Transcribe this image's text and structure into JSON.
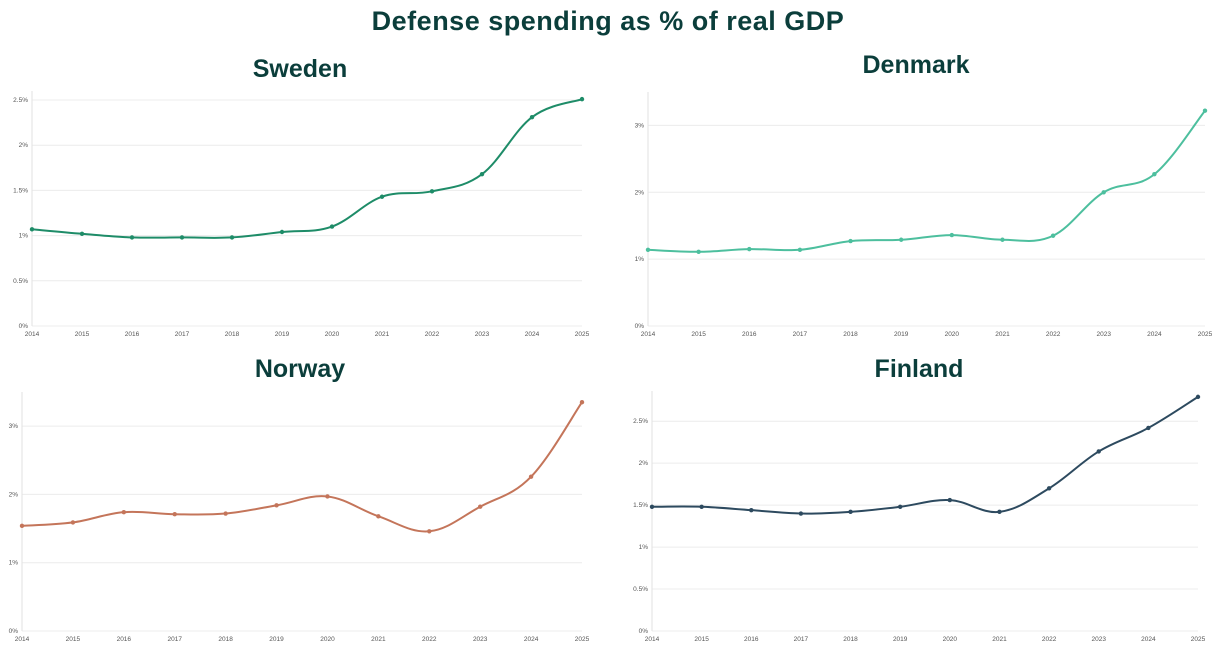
{
  "title": "Defense spending as % of real GDP",
  "chart_data": [
    {
      "type": "line",
      "title": "Sweden",
      "color": "#1e8c68",
      "x": [
        2014,
        2015,
        2016,
        2017,
        2018,
        2019,
        2020,
        2021,
        2022,
        2023,
        2024,
        2025
      ],
      "xtick_labels": [
        "2014",
        "2015",
        "2016",
        "2017",
        "2018",
        "2019",
        "2020",
        "2021",
        "2022",
        "2023",
        "2024",
        "2025"
      ],
      "values": [
        1.07,
        1.02,
        0.98,
        0.98,
        0.98,
        1.04,
        1.1,
        1.43,
        1.49,
        1.68,
        2.31,
        2.51
      ],
      "yticks": [
        0,
        0.5,
        1,
        1.5,
        2,
        2.5
      ],
      "ytick_labels": [
        "0%",
        "0.5%",
        "1%",
        "1.5%",
        "2%",
        "2.5%"
      ],
      "ylim": [
        0,
        2.6
      ],
      "grid": true,
      "xlabel": "",
      "ylabel": ""
    },
    {
      "type": "line",
      "title": "Denmark",
      "color": "#4dbf9e",
      "x": [
        2014,
        2015,
        2016,
        2017,
        2018,
        2019,
        2020,
        2021,
        2022,
        2023,
        2024,
        2025
      ],
      "xtick_labels": [
        "2014",
        "2015",
        "2016",
        "2017",
        "2018",
        "2019",
        "2020",
        "2021",
        "2022",
        "2023",
        "2024",
        "2025"
      ],
      "values": [
        1.14,
        1.11,
        1.15,
        1.14,
        1.27,
        1.29,
        1.36,
        1.29,
        1.35,
        2.0,
        2.27,
        3.22
      ],
      "yticks": [
        0,
        1,
        2,
        3
      ],
      "ytick_labels": [
        "0%",
        "1%",
        "2%",
        "3%"
      ],
      "ylim": [
        0,
        3.5
      ],
      "grid": true,
      "xlabel": "",
      "ylabel": ""
    },
    {
      "type": "line",
      "title": "Norway",
      "color": "#c4755a",
      "x": [
        2014,
        2015,
        2016,
        2017,
        2018,
        2019,
        2020,
        2021,
        2022,
        2023,
        2024,
        2025
      ],
      "xtick_labels": [
        "2014",
        "2015",
        "2016",
        "2017",
        "2018",
        "2019",
        "2020",
        "2021",
        "2022",
        "2023",
        "2024",
        "2025"
      ],
      "values": [
        1.54,
        1.59,
        1.74,
        1.71,
        1.72,
        1.84,
        1.97,
        1.68,
        1.46,
        1.82,
        2.26,
        3.35
      ],
      "yticks": [
        0,
        1,
        2,
        3
      ],
      "ytick_labels": [
        "0%",
        "1%",
        "2%",
        "3%"
      ],
      "ylim": [
        0,
        3.5
      ],
      "grid": true,
      "xlabel": "",
      "ylabel": ""
    },
    {
      "type": "line",
      "title": "Finland",
      "color": "#2d4a5f",
      "x": [
        2014,
        2015,
        2016,
        2017,
        2018,
        2019,
        2020,
        2021,
        2022,
        2023,
        2024,
        2025
      ],
      "xtick_labels": [
        "2014",
        "2015",
        "2016",
        "2017",
        "2018",
        "2019",
        "2020",
        "2021",
        "2022",
        "2023",
        "2024",
        "2025"
      ],
      "values": [
        1.48,
        1.48,
        1.44,
        1.4,
        1.42,
        1.48,
        1.56,
        1.42,
        1.7,
        2.14,
        2.42,
        2.79
      ],
      "yticks": [
        0,
        0.5,
        1,
        1.5,
        2,
        2.5
      ],
      "ytick_labels": [
        "0%",
        "0.5%",
        "1%",
        "1.5%",
        "2%",
        "2.5%"
      ],
      "ylim": [
        0,
        2.86
      ],
      "grid": true,
      "xlabel": "",
      "ylabel": ""
    }
  ]
}
